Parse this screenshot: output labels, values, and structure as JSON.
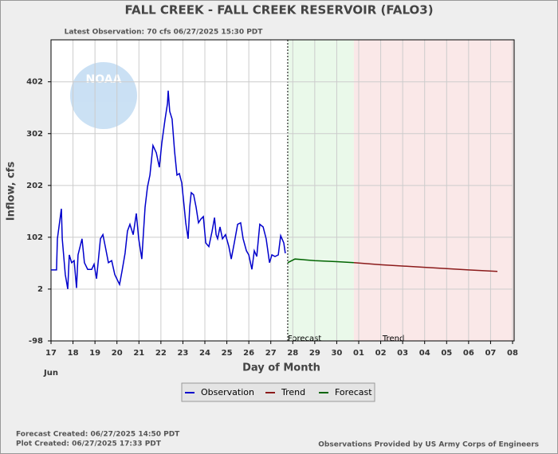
{
  "chart_data": {
    "type": "line",
    "title": "FALL CREEK - FALL CREEK RESERVOIR  (FALO3)",
    "subtitle": "Latest Observation: 70 cfs 06/27/2025 15:30 PDT",
    "y_label": "Inflow, cfs",
    "x_label": "Day of Month",
    "month_label": "Jun",
    "logo_text": "NOAA",
    "xlim": [
      0,
      21
    ],
    "xticks": [
      {
        "value": 0,
        "label": "17"
      },
      {
        "value": 1,
        "label": "18"
      },
      {
        "value": 2,
        "label": "19"
      },
      {
        "value": 3,
        "label": "20"
      },
      {
        "value": 4,
        "label": "21"
      },
      {
        "value": 5,
        "label": "22"
      },
      {
        "value": 6,
        "label": "23"
      },
      {
        "value": 7,
        "label": "24"
      },
      {
        "value": 8,
        "label": "25"
      },
      {
        "value": 9,
        "label": "26"
      },
      {
        "value": 10,
        "label": "27"
      },
      {
        "value": 11,
        "label": "28"
      },
      {
        "value": 12,
        "label": "29"
      },
      {
        "value": 13,
        "label": "30"
      },
      {
        "value": 14,
        "label": "01"
      },
      {
        "value": 15,
        "label": "02"
      },
      {
        "value": 16,
        "label": "03"
      },
      {
        "value": 17,
        "label": "04"
      },
      {
        "value": 18,
        "label": "05"
      },
      {
        "value": 19,
        "label": "06"
      },
      {
        "value": 20,
        "label": "07"
      },
      {
        "value": 21,
        "label": "08"
      }
    ],
    "ylim": [
      -98,
      483
    ],
    "yticks": [
      -98,
      2,
      102,
      202,
      302,
      402
    ],
    "grid": true,
    "regions": [
      {
        "name": "Forecast",
        "color": "#eaf9ea",
        "x": [
          10.77,
          13.78
        ]
      },
      {
        "name": "Trend",
        "color": "#fae8e8",
        "x": [
          13.78,
          21.07
        ]
      }
    ],
    "series": [
      {
        "name": "Observation",
        "color": "#0000cc",
        "x": [
          0,
          0.25,
          0.29,
          0.47,
          0.51,
          0.65,
          0.76,
          0.83,
          0.94,
          1.05,
          1.16,
          1.23,
          1.41,
          1.52,
          1.67,
          1.85,
          1.96,
          2.07,
          2.25,
          2.36,
          2.47,
          2.61,
          2.76,
          2.9,
          3.12,
          3.23,
          3.37,
          3.48,
          3.59,
          3.74,
          3.88,
          3.99,
          4.13,
          4.21,
          4.28,
          4.39,
          4.5,
          4.64,
          4.79,
          4.93,
          5.04,
          5.19,
          5.3,
          5.33,
          5.4,
          5.51,
          5.62,
          5.73,
          5.84,
          5.95,
          6.06,
          6.13,
          6.24,
          6.31,
          6.38,
          6.49,
          6.6,
          6.71,
          6.82,
          6.93,
          7.04,
          7.18,
          7.33,
          7.44,
          7.51,
          7.58,
          7.69,
          7.8,
          7.94,
          8.09,
          8.2,
          8.34,
          8.49,
          8.63,
          8.74,
          8.89,
          9.0,
          9.14,
          9.25,
          9.36,
          9.5,
          9.65,
          9.79,
          9.94,
          10.05,
          10.19,
          10.34,
          10.45,
          10.59,
          10.66
        ],
        "values": [
          39,
          39,
          99,
          157,
          99,
          30,
          2,
          68,
          53,
          57,
          4,
          68,
          99,
          53,
          40,
          40,
          50,
          22,
          99,
          107,
          84,
          53,
          57,
          30,
          11,
          37,
          71,
          114,
          127,
          107,
          148,
          99,
          60,
          114,
          160,
          199,
          222,
          279,
          265,
          237,
          284,
          330,
          360,
          385,
          345,
          330,
          268,
          222,
          225,
          207,
          160,
          130,
          99,
          160,
          188,
          184,
          160,
          130,
          137,
          142,
          91,
          84,
          114,
          140,
          107,
          99,
          122,
          99,
          107,
          84,
          60,
          91,
          127,
          130,
          99,
          76,
          68,
          40,
          76,
          65,
          127,
          122,
          99,
          53,
          68,
          65,
          68,
          105,
          91,
          71
        ]
      },
      {
        "name": "Trend",
        "color": "#8b1a1a",
        "x": [
          13.78,
          15,
          17,
          19,
          20.31
        ],
        "values": [
          53,
          49,
          44,
          39,
          36
        ]
      },
      {
        "name": "Forecast",
        "color": "#006400",
        "x": [
          10.77,
          11.1,
          12.0,
          13.0,
          13.78
        ],
        "values": [
          53,
          60,
          57,
          55,
          53
        ]
      }
    ],
    "footer_left": [
      "Forecast Created: 06/27/2025 14:50 PDT",
      "Plot Created: 06/27/2025 17:33 PDT"
    ],
    "footer_right": "Observations Provided by US Army Corps of Engineers"
  }
}
